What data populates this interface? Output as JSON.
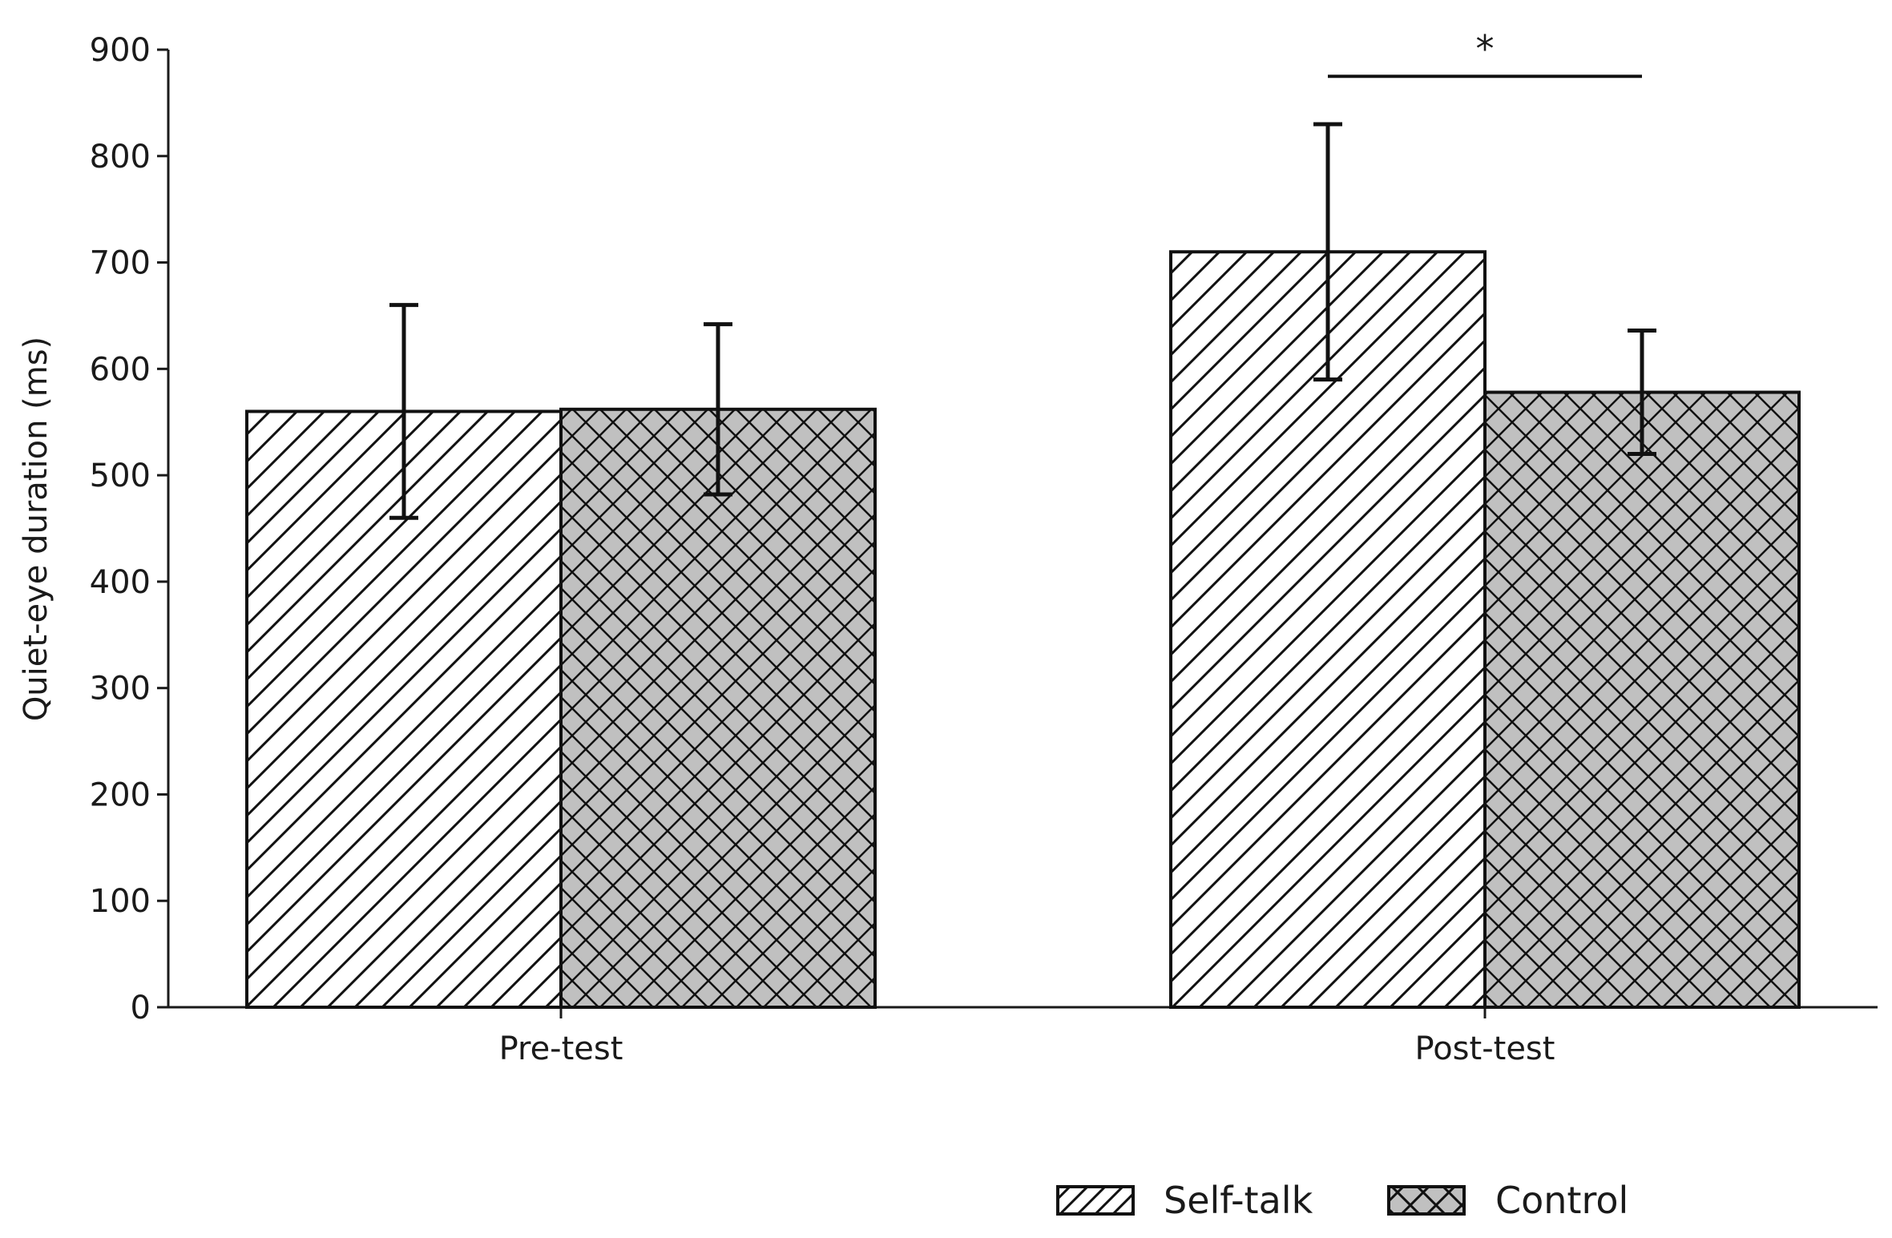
{
  "chart_data": {
    "type": "bar",
    "categories": [
      "Pre-test",
      "Post-test"
    ],
    "series": [
      {
        "name": "Self-talk",
        "values": [
          560,
          710
        ],
        "errors": [
          100,
          120
        ],
        "fill": "#ffffff",
        "pattern": "diagonal"
      },
      {
        "name": "Control",
        "values": [
          562,
          578
        ],
        "errors": [
          80,
          58
        ],
        "fill": "#c0c0c0",
        "pattern": "crosshatch"
      }
    ],
    "title": "",
    "xlabel": "",
    "ylabel": "Quiet-eye duration (ms)",
    "ylim": [
      0,
      900
    ],
    "yticks": [
      "0",
      "100",
      "200",
      "300",
      "400",
      "500",
      "600",
      "700",
      "800",
      "900"
    ],
    "grid": false,
    "legend_position": "bottom-right",
    "annotations": [
      {
        "text": "*",
        "category": "Post-test",
        "between": [
          "Self-talk",
          "Control"
        ],
        "y": 875
      }
    ]
  }
}
